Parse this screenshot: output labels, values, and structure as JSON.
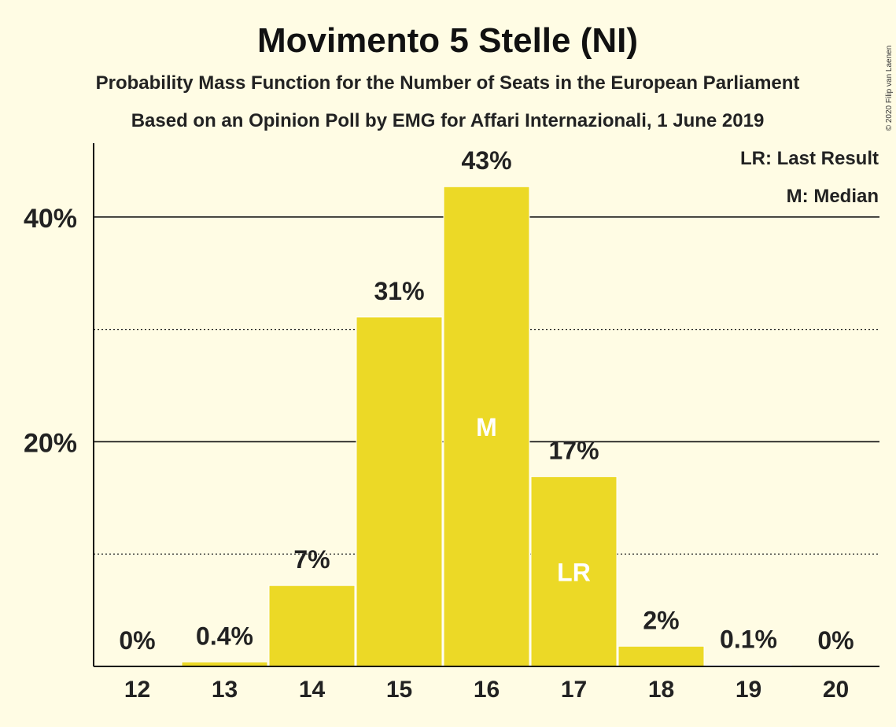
{
  "colors": {
    "background": "#FFFCE4",
    "bar": "#ECD926",
    "bar_outline": "#FFFFFF",
    "marker_text": "#FFFFFF",
    "text": "#222222",
    "axis": "#111111"
  },
  "chart_data": {
    "type": "bar",
    "title": "Movimento 5 Stelle (NI)",
    "subtitle": "Probability Mass Function for the Number of Seats in the European Parliament",
    "subtitle2": "Based on an Opinion Poll by EMG for Affari Internazionali, 1 June 2019",
    "categories": [
      "12",
      "13",
      "14",
      "15",
      "16",
      "17",
      "18",
      "19",
      "20"
    ],
    "values": [
      0,
      0.4,
      7.2,
      31.1,
      42.7,
      16.9,
      1.8,
      0.1,
      0
    ],
    "value_labels": [
      "0%",
      "0.4%",
      "7%",
      "31%",
      "43%",
      "17%",
      "2%",
      "0.1%",
      "0%"
    ],
    "markers": [
      {
        "category": "16",
        "label": "M"
      },
      {
        "category": "17",
        "label": "LR"
      }
    ],
    "y_ticks_major": [
      {
        "value": 20,
        "label": "20%"
      },
      {
        "value": 40,
        "label": "40%"
      }
    ],
    "y_ticks_minor": [
      10,
      30
    ],
    "ylim": [
      0,
      46.5
    ],
    "xlabel": "",
    "ylabel": "",
    "grid": true,
    "legend": {
      "placement": "top-right",
      "entries": [
        "LR: Last Result",
        "M: Median"
      ]
    },
    "copyright": "© 2020 Filip van Laenen"
  }
}
